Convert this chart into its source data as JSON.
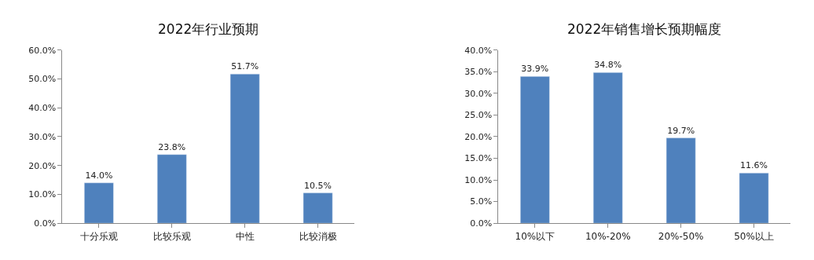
{
  "chart_data": [
    {
      "type": "bar",
      "title": "2022年行业预期",
      "categories": [
        "十分乐观",
        "比较乐观",
        "中性",
        "比较消极"
      ],
      "values": [
        14.0,
        23.8,
        51.7,
        10.5
      ],
      "value_labels": [
        "14.0%",
        "23.8%",
        "51.7%",
        "10.5%"
      ],
      "color": "#4f81bd",
      "ylim": [
        0,
        60
      ],
      "yticks": [
        {
          "value": 0,
          "label": "0.0%"
        },
        {
          "value": 10,
          "label": "10.0%"
        },
        {
          "value": 20,
          "label": "20.0%"
        },
        {
          "value": 30,
          "label": "30.0%"
        },
        {
          "value": 40,
          "label": "40.0%"
        },
        {
          "value": 50,
          "label": "50.0%"
        },
        {
          "value": 60,
          "label": "60.0%"
        }
      ],
      "grid": false,
      "legend": false
    },
    {
      "type": "bar",
      "title": "2022年销售增长预期幅度",
      "categories": [
        "10%以下",
        "10%-20%",
        "20%-50%",
        "50%以上"
      ],
      "values": [
        33.9,
        34.8,
        19.7,
        11.6
      ],
      "value_labels": [
        "33.9%",
        "34.8%",
        "19.7%",
        "11.6%"
      ],
      "color": "#4f81bd",
      "ylim": [
        0,
        40
      ],
      "yticks": [
        {
          "value": 0,
          "label": "0.0%"
        },
        {
          "value": 5,
          "label": "5.0%"
        },
        {
          "value": 10,
          "label": "10.0%"
        },
        {
          "value": 15,
          "label": "15.0%"
        },
        {
          "value": 20,
          "label": "20.0%"
        },
        {
          "value": 25,
          "label": "25.0%"
        },
        {
          "value": 30,
          "label": "30.0%"
        },
        {
          "value": 35,
          "label": "35.0%"
        },
        {
          "value": 40,
          "label": "40.0%"
        }
      ],
      "grid": false,
      "legend": false
    }
  ]
}
